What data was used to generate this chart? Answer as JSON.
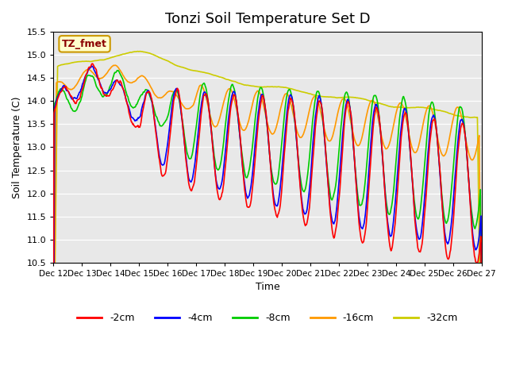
{
  "title": "Tonzi Soil Temperature Set D",
  "xlabel": "Time",
  "ylabel": "Soil Temperature (C)",
  "ylim": [
    10.5,
    15.5
  ],
  "yticks": [
    10.5,
    11.0,
    11.5,
    12.0,
    12.5,
    13.0,
    13.5,
    14.0,
    14.5,
    15.0,
    15.5
  ],
  "x_labels": [
    "Dec 12",
    "Dec 13",
    "Dec 14",
    "Dec 15",
    "Dec 16",
    "Dec 17",
    "Dec 18",
    "Dec 19",
    "Dec 20",
    "Dec 21",
    "Dec 22",
    "Dec 23",
    "Dec 24",
    "Dec 25",
    "Dec 26",
    "Dec 27"
  ],
  "legend_label": "TZ_fmet",
  "series_labels": [
    "-2cm",
    "-4cm",
    "-8cm",
    "-16cm",
    "-32cm"
  ],
  "series_colors": [
    "#ff0000",
    "#0000ff",
    "#00cc00",
    "#ff9900",
    "#cccc00"
  ],
  "plot_bg_color": "#e8e8e8",
  "title_fontsize": 13,
  "n_days": 15
}
